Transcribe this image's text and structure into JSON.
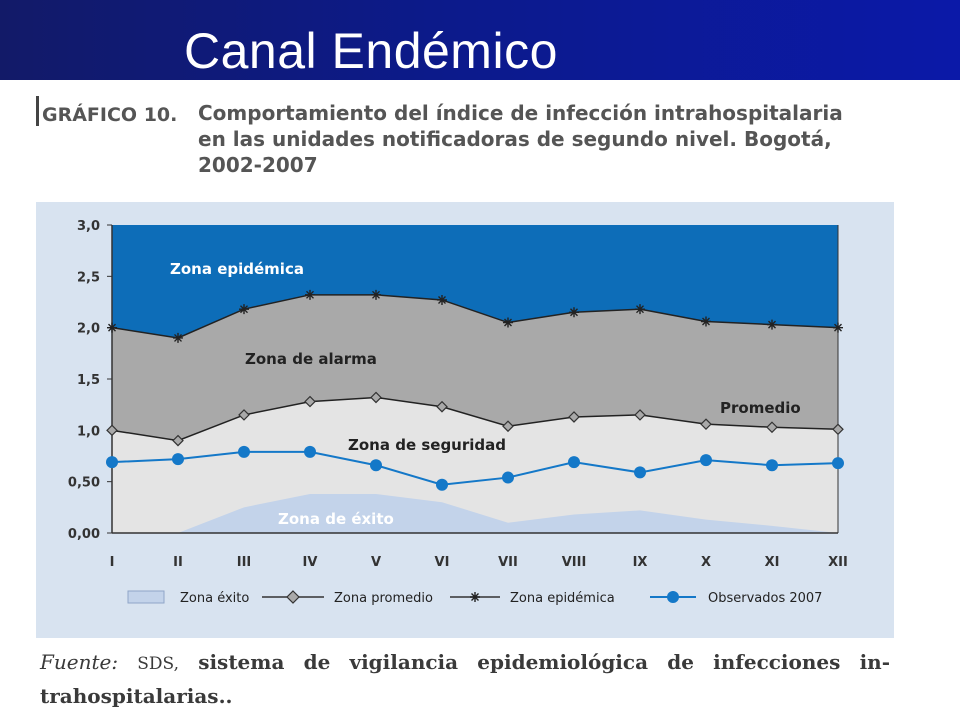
{
  "slide": {
    "title": "Canal Endémico"
  },
  "figure": {
    "label": "GRÁFICO 10.",
    "caption": "Comportamiento del índice de infección intrahospitalaria en las unidades notificadoras de segundo nivel. Bogotá, 2002-2007"
  },
  "source": {
    "label": "Fuente:",
    "org": "SDS,",
    "text": "sistema de vigilancia epidemiológica de infecciones in- trahospitalarias.."
  },
  "colors": {
    "banner": "#0c1a8a",
    "epidemic_zone": "#0d6db8",
    "alarm_zone": "#a9a9a9",
    "security_zone": "#e4e4e4",
    "success_zone": "#c3d3ea",
    "observed": "#1478c8"
  },
  "chart_data": {
    "type": "area",
    "categories": [
      "I",
      "II",
      "III",
      "IV",
      "V",
      "VI",
      "VII",
      "VIII",
      "IX",
      "X",
      "XI",
      "XII"
    ],
    "yticks": [
      "3,0",
      "2,5",
      "2,0",
      "1,5",
      "1,0",
      "0,50",
      "0,00"
    ],
    "ylim": [
      0,
      3.0
    ],
    "grid": false,
    "legend_position": "bottom",
    "zone_labels": {
      "epidemic": "Zona epidémica",
      "alarm": "Zona de alarma",
      "security": "Zona de seguridad",
      "success": "Zona de éxito",
      "average": "Promedio"
    },
    "series": [
      {
        "name": "Zona éxito",
        "type": "area",
        "values": [
          0.0,
          0.0,
          0.25,
          0.38,
          0.38,
          0.3,
          0.1,
          0.18,
          0.22,
          0.13,
          0.07,
          0.0
        ]
      },
      {
        "name": "Zona promedio",
        "type": "line",
        "marker": "diamond",
        "values": [
          1.0,
          0.9,
          1.15,
          1.28,
          1.32,
          1.23,
          1.04,
          1.13,
          1.15,
          1.06,
          1.03,
          1.01
        ]
      },
      {
        "name": "Zona epidémica",
        "type": "line",
        "marker": "star",
        "values": [
          2.0,
          1.9,
          2.18,
          2.32,
          2.32,
          2.27,
          2.05,
          2.15,
          2.18,
          2.06,
          2.03,
          2.0
        ]
      },
      {
        "name": "Observados 2007",
        "type": "line",
        "marker": "circle",
        "values": [
          0.69,
          0.72,
          0.79,
          0.79,
          0.66,
          0.47,
          0.54,
          0.69,
          0.59,
          0.71,
          0.66,
          0.68
        ]
      }
    ]
  }
}
